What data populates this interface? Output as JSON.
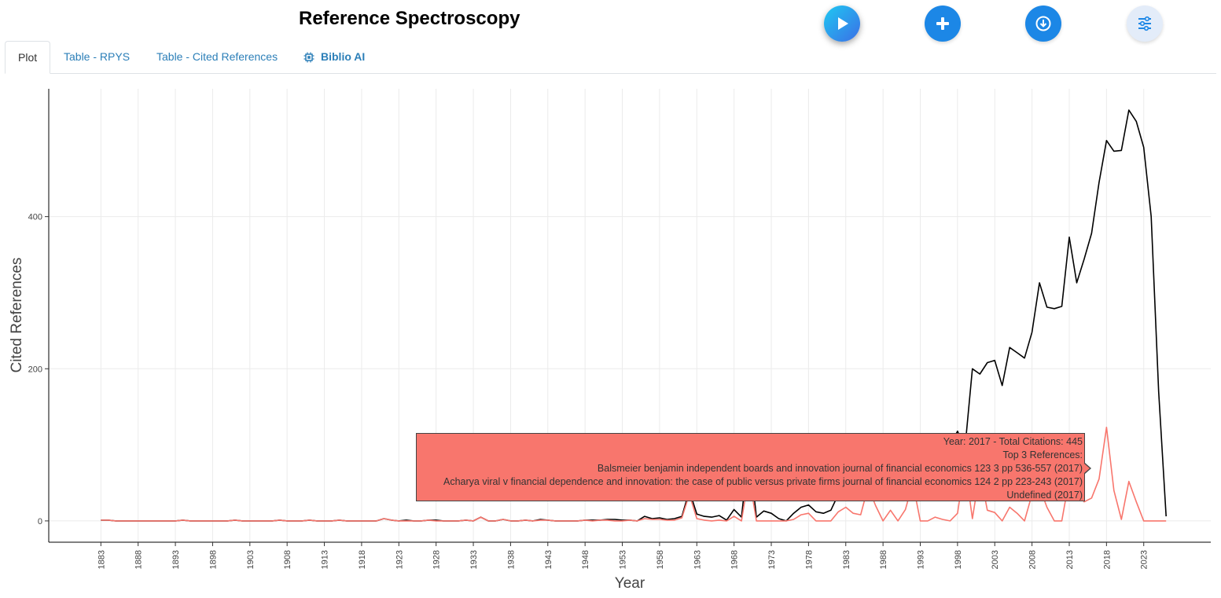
{
  "page": {
    "title": "Reference Spectroscopy"
  },
  "toolbar": {
    "run_icon": "play-icon",
    "add_icon": "plus-icon",
    "download_icon": "download-icon",
    "settings_icon": "sliders-icon"
  },
  "tabs": [
    {
      "label": "Plot",
      "active": true
    },
    {
      "label": "Table - RPYS",
      "active": false
    },
    {
      "label": "Table - Cited References",
      "active": false
    },
    {
      "label": "Biblio AI",
      "active": false,
      "icon": "chip-icon"
    }
  ],
  "colors": {
    "accent": "#1c87e6",
    "tab_link": "#2c7fb8",
    "total_series": "#000000",
    "median_series": "#f8766d"
  },
  "tooltip": {
    "lines": [
      "Year:  2017  - Total Citations:  445",
      "Top 3 References:",
      "Balsmeier benjamin independent boards and innovation journal of financial economics 123 3 pp 536-557 (2017)",
      "Acharya viral v financial dependence and innovation: the case of public versus private firms journal of financial economics 124 2 pp 223-243 (2017)",
      "Undefined (2017)"
    ]
  },
  "chart_data": {
    "type": "line",
    "xlabel": "Year",
    "ylabel": "Cited References",
    "xlim": [
      1876,
      2032
    ],
    "ylim": [
      -28,
      568
    ],
    "yticks": [
      0,
      200,
      400
    ],
    "xticks": [
      1883,
      1888,
      1893,
      1898,
      1903,
      1908,
      1913,
      1918,
      1923,
      1928,
      1933,
      1938,
      1943,
      1948,
      1953,
      1958,
      1963,
      1968,
      1973,
      1978,
      1983,
      1988,
      1993,
      1998,
      2003,
      2008,
      2013,
      2018,
      2023
    ],
    "grid": true,
    "legend": "none",
    "x": [
      1883,
      1884,
      1885,
      1886,
      1887,
      1888,
      1889,
      1890,
      1891,
      1892,
      1893,
      1894,
      1895,
      1896,
      1897,
      1898,
      1899,
      1900,
      1901,
      1902,
      1903,
      1904,
      1905,
      1906,
      1907,
      1908,
      1909,
      1910,
      1911,
      1912,
      1913,
      1914,
      1915,
      1916,
      1917,
      1918,
      1919,
      1920,
      1921,
      1922,
      1923,
      1924,
      1925,
      1926,
      1927,
      1928,
      1929,
      1930,
      1931,
      1932,
      1933,
      1934,
      1935,
      1936,
      1937,
      1938,
      1939,
      1940,
      1941,
      1942,
      1943,
      1944,
      1945,
      1946,
      1947,
      1948,
      1949,
      1950,
      1951,
      1952,
      1953,
      1954,
      1955,
      1956,
      1957,
      1958,
      1959,
      1960,
      1961,
      1962,
      1963,
      1964,
      1965,
      1966,
      1967,
      1968,
      1969,
      1970,
      1971,
      1972,
      1973,
      1974,
      1975,
      1976,
      1977,
      1978,
      1979,
      1980,
      1981,
      1982,
      1983,
      1984,
      1985,
      1986,
      1987,
      1988,
      1989,
      1990,
      1991,
      1992,
      1993,
      1994,
      1995,
      1996,
      1997,
      1998,
      1999,
      2000,
      2001,
      2002,
      2003,
      2004,
      2005,
      2006,
      2007,
      2008,
      2009,
      2010,
      2011,
      2012,
      2013,
      2014,
      2015,
      2016,
      2017,
      2018,
      2019,
      2020,
      2021,
      2022,
      2023,
      2024,
      2025,
      2026
    ],
    "series": [
      {
        "values": [
          1,
          1,
          0,
          0,
          0,
          0,
          0,
          0,
          0,
          0,
          0,
          1,
          0,
          0,
          0,
          0,
          0,
          0,
          1,
          0,
          0,
          0,
          0,
          0,
          1,
          0,
          0,
          0,
          1,
          0,
          0,
          0,
          1,
          0,
          0,
          0,
          0,
          0,
          3,
          1,
          0,
          1,
          0,
          0,
          1,
          1,
          0,
          0,
          0,
          1,
          0,
          5,
          0,
          0,
          2,
          0,
          0,
          1,
          0,
          2,
          1,
          0,
          0,
          0,
          0,
          1,
          1,
          1,
          2,
          2,
          1,
          1,
          0,
          6,
          3,
          4,
          2,
          3,
          6,
          40,
          9,
          6,
          5,
          7,
          1,
          15,
          5,
          95,
          5,
          13,
          10,
          3,
          0,
          10,
          18,
          21,
          12,
          10,
          14,
          35,
          100,
          90,
          70,
          75,
          90,
          95,
          100,
          100,
          95,
          95,
          105,
          95,
          85,
          90,
          100,
          118,
          95,
          200,
          193,
          208,
          211,
          178,
          228,
          221,
          214,
          248,
          313,
          281,
          279,
          282,
          373,
          313,
          344,
          378,
          445,
          500,
          486,
          487,
          540,
          525,
          491,
          400,
          170,
          6
        ]
      },
      {
        "values": [
          1,
          1,
          0,
          0,
          0,
          0,
          0,
          0,
          0,
          0,
          0,
          1,
          0,
          0,
          0,
          0,
          0,
          0,
          1,
          0,
          0,
          0,
          0,
          0,
          1,
          0,
          0,
          0,
          1,
          0,
          0,
          0,
          1,
          0,
          0,
          0,
          0,
          0,
          3,
          1,
          0,
          0,
          0,
          0,
          1,
          0,
          0,
          0,
          0,
          1,
          0,
          5,
          0,
          0,
          2,
          0,
          0,
          1,
          0,
          1,
          1,
          0,
          0,
          0,
          0,
          1,
          0,
          1,
          1,
          0,
          0,
          1,
          0,
          3,
          2,
          2,
          1,
          1,
          4,
          35,
          3,
          1,
          0,
          1,
          0,
          6,
          0,
          60,
          0,
          0,
          0,
          0,
          0,
          2,
          8,
          10,
          0,
          0,
          0,
          12,
          18,
          10,
          8,
          45,
          20,
          0,
          14,
          0,
          15,
          50,
          0,
          0,
          5,
          2,
          0,
          10,
          75,
          3,
          65,
          14,
          11,
          0,
          18,
          10,
          0,
          35,
          45,
          18,
          0,
          0,
          55,
          38,
          25,
          30,
          55,
          123,
          40,
          2,
          52,
          25,
          0,
          0,
          0,
          0
        ]
      }
    ]
  }
}
